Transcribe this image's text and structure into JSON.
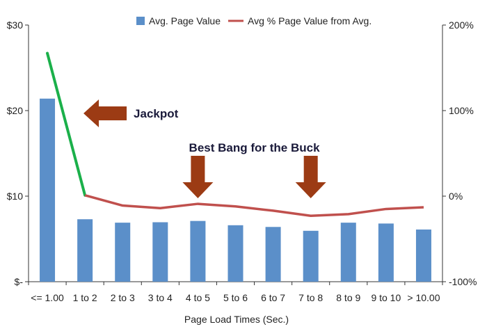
{
  "chart_data": {
    "type": "bar",
    "title": "",
    "xlabel": "Page Load Times (Sec.)",
    "ylabel": "",
    "y2label": "",
    "categories": [
      "<= 1.00",
      "1 to 2",
      "2 to 3",
      "3 to 4",
      "4 to 5",
      "5 to 6",
      "6 to 7",
      "7 to 8",
      "8 to 9",
      "9 to 10",
      "> 10.00"
    ],
    "ylim": [
      0,
      30
    ],
    "y2lim": [
      -100,
      200
    ],
    "y_ticks": [
      {
        "value": 0,
        "label": "$-"
      },
      {
        "value": 10,
        "label": "$10"
      },
      {
        "value": 20,
        "label": "$20"
      },
      {
        "value": 30,
        "label": "$30"
      }
    ],
    "y2_ticks": [
      {
        "value": -100,
        "label": "-100%"
      },
      {
        "value": 0,
        "label": "0%"
      },
      {
        "value": 100,
        "label": "100%"
      },
      {
        "value": 200,
        "label": "200%"
      }
    ],
    "series": [
      {
        "name": "Avg. Page Value",
        "kind": "bar",
        "axis": "left",
        "color": "#5b8fc9",
        "values": [
          21.4,
          7.3,
          6.9,
          6.95,
          7.1,
          6.6,
          6.4,
          5.95,
          6.9,
          6.8,
          6.1
        ]
      },
      {
        "name": "Avg % Page Value from Avg.",
        "kind": "line",
        "axis": "right",
        "color": "#c0504d",
        "highlight_color": "#1bb04a",
        "values": [
          167,
          1,
          -11,
          -14,
          -9,
          -12,
          -17,
          -23,
          -21,
          -15,
          -13
        ]
      }
    ],
    "legend_position": "top",
    "annotations": [
      {
        "text": "Jackpot",
        "category_index": 0,
        "arrow": "left"
      },
      {
        "text": "Best Bang for the Buck",
        "category_indices": [
          4,
          7
        ],
        "arrow": "down"
      }
    ],
    "colors": {
      "arrow": "#9c3b14",
      "annotation_text": "#1a1a3a",
      "axis": "#333333"
    }
  }
}
